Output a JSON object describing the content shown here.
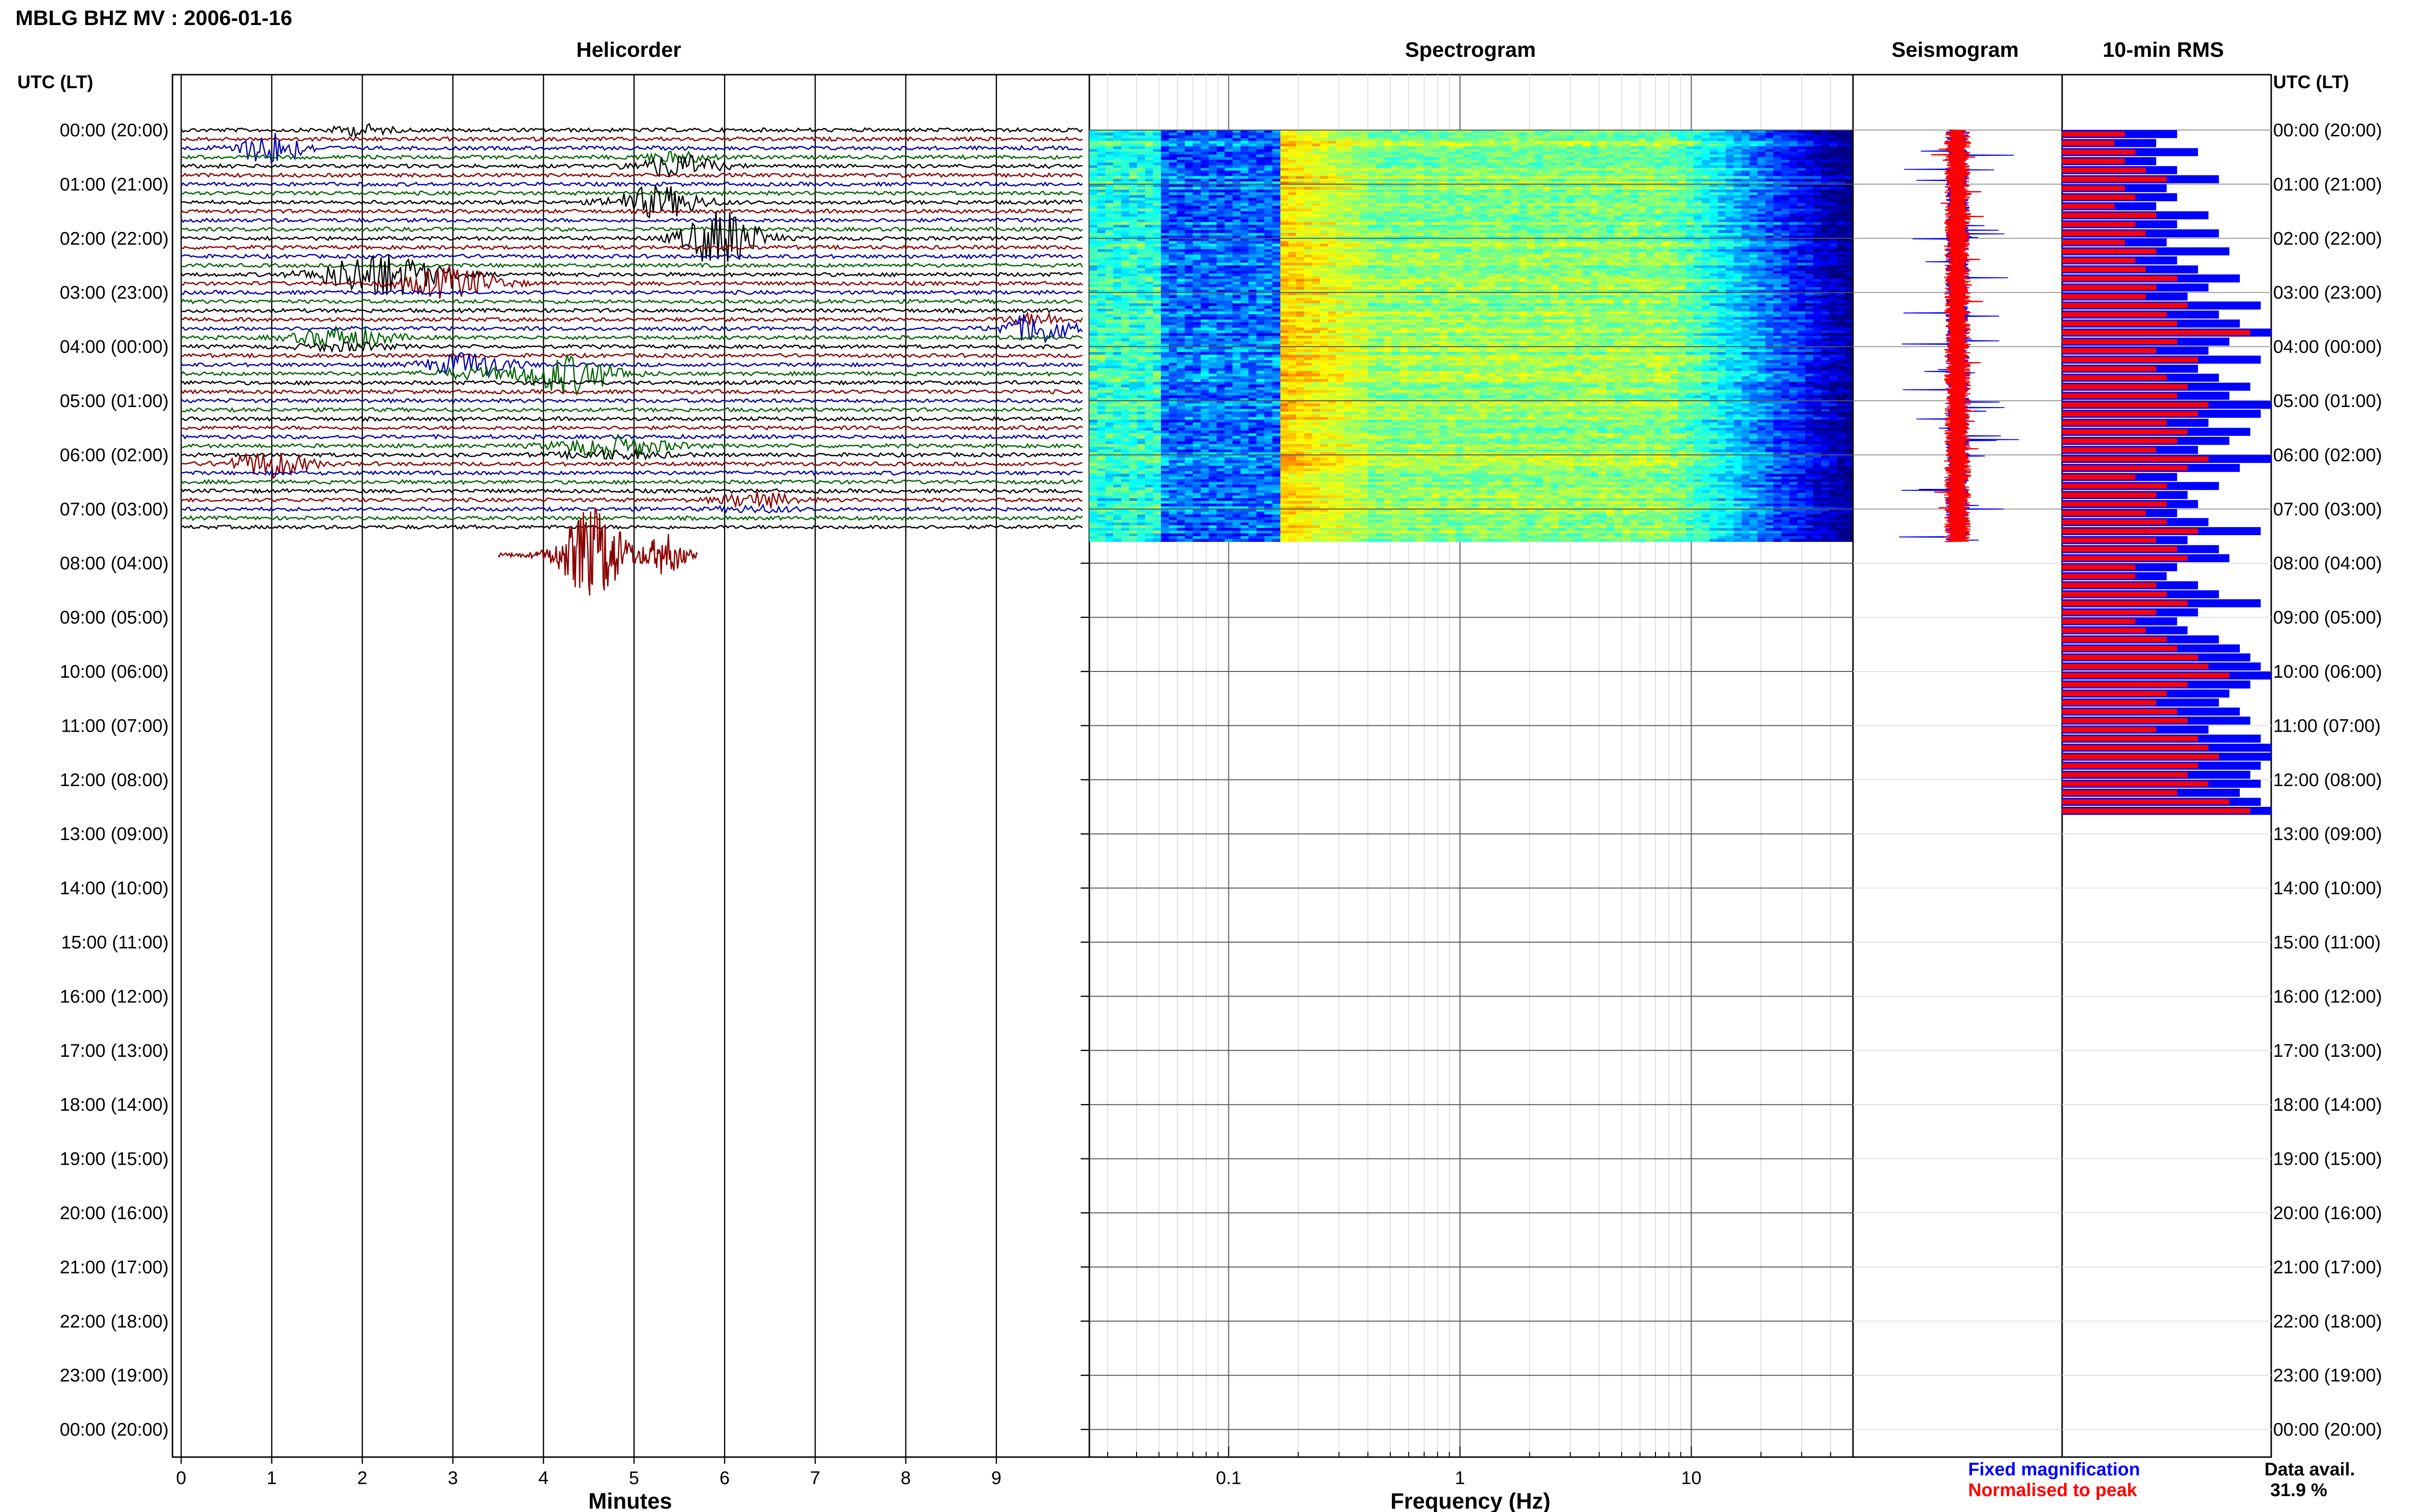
{
  "title": "MBLG BHZ MV : 2006-01-16",
  "panels": {
    "helicorder": "Helicorder",
    "spectrogram": "Spectrogram",
    "seismogram": "Seismogram",
    "rms": "10-min RMS"
  },
  "time_header": "UTC (LT)",
  "time_labels": [
    "00:00 (20:00)",
    "01:00 (21:00)",
    "02:00 (22:00)",
    "03:00 (23:00)",
    "04:00 (00:00)",
    "05:00 (01:00)",
    "06:00 (02:00)",
    "07:00 (03:00)",
    "08:00 (04:00)",
    "09:00 (05:00)",
    "10:00 (06:00)",
    "11:00 (07:00)",
    "12:00 (08:00)",
    "13:00 (09:00)",
    "14:00 (10:00)",
    "15:00 (11:00)",
    "16:00 (12:00)",
    "17:00 (13:00)",
    "18:00 (14:00)",
    "19:00 (15:00)",
    "20:00 (16:00)",
    "21:00 (17:00)",
    "22:00 (18:00)",
    "23:00 (19:00)",
    "00:00 (20:00)"
  ],
  "legend": {
    "fixed": "Fixed magnification",
    "normalised": "Normalised to peak",
    "fixed_color": "#0000ff",
    "normalised_color": "#ff0000"
  },
  "availability": {
    "label": "Data avail.",
    "value": "31.9 %"
  },
  "chart_data": [
    {
      "type": "line",
      "name": "helicorder",
      "xlabel": "Minutes",
      "xticks": [
        "0",
        "1",
        "2",
        "3",
        "4",
        "5",
        "6",
        "7",
        "8",
        "9"
      ],
      "xlim": [
        0,
        10
      ],
      "line_colors": [
        "#000000",
        "#8b0000",
        "#0000aa",
        "#006400"
      ],
      "data_end_hours": 7.6
    },
    {
      "type": "heatmap",
      "name": "spectrogram",
      "xlabel": "Frequency (Hz)",
      "xscale": "log",
      "xticks": [
        "0.1",
        "1",
        "10"
      ],
      "xlim": [
        0.025,
        50
      ],
      "data_end_hours": 7.6
    },
    {
      "type": "line",
      "name": "seismogram",
      "series": [
        "Fixed magnification",
        "Normalised to peak"
      ],
      "data_end_hours": 7.6
    },
    {
      "type": "bar",
      "name": "10-min RMS",
      "series": [
        {
          "name": "Fixed magnification",
          "color": "#0000ff",
          "values": [
            0.55,
            0.45,
            0.65,
            0.45,
            0.55,
            0.75,
            0.5,
            0.55,
            0.45,
            0.7,
            0.55,
            0.75,
            0.5,
            0.8,
            0.55,
            0.65,
            0.85,
            0.7,
            0.6,
            0.95,
            0.75,
            0.85,
            1.0,
            0.8,
            0.7,
            0.95,
            0.65,
            0.75,
            0.9,
            0.8,
            1.0,
            0.95,
            0.7,
            0.9,
            0.8,
            0.65,
            1.0,
            0.85,
            0.55,
            0.75,
            0.6,
            0.65,
            0.55,
            0.7,
            0.95,
            0.6,
            0.75,
            0.8,
            0.55,
            0.5,
            0.65,
            0.75,
            0.95,
            0.65,
            0.55,
            0.6,
            0.75,
            0.85,
            0.9,
            0.95,
            1.0,
            0.9,
            0.8,
            0.75,
            0.85,
            0.9,
            0.7,
            0.95,
            1.0,
            1.0,
            0.95,
            0.9,
            0.95,
            0.85,
            0.95,
            1.0
          ]
        },
        {
          "name": "Normalised to peak",
          "color": "#ff0000",
          "values": [
            0.3,
            0.25,
            0.35,
            0.3,
            0.4,
            0.5,
            0.3,
            0.35,
            0.25,
            0.45,
            0.35,
            0.4,
            0.3,
            0.45,
            0.35,
            0.4,
            0.55,
            0.45,
            0.4,
            0.6,
            0.5,
            0.55,
            0.9,
            0.55,
            0.45,
            0.65,
            0.45,
            0.5,
            0.6,
            0.55,
            0.7,
            0.65,
            0.5,
            0.6,
            0.55,
            0.45,
            0.7,
            0.6,
            0.35,
            0.5,
            0.45,
            0.5,
            0.4,
            0.5,
            0.65,
            0.45,
            0.55,
            0.6,
            0.35,
            0.35,
            0.45,
            0.5,
            0.6,
            0.45,
            0.35,
            0.4,
            0.5,
            0.55,
            0.65,
            0.7,
            0.8,
            0.6,
            0.5,
            0.45,
            0.55,
            0.6,
            0.45,
            0.65,
            0.7,
            0.75,
            0.65,
            0.6,
            0.7,
            0.55,
            0.8,
            0.9
          ]
        }
      ]
    }
  ]
}
